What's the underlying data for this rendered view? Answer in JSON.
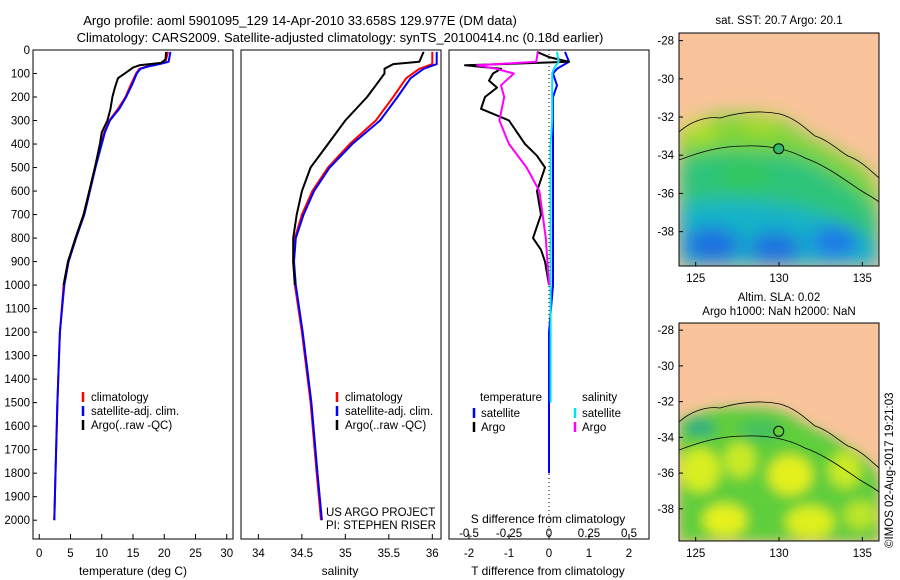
{
  "header": {
    "title_line1": "Argo profile: aoml 5901095_129 14-Apr-2010 33.658S 129.977E (DM data)",
    "title_line2": "Climatology: CARS2009. Satellite-adjusted climatology: synTS_20100414.nc (0.18d earlier)"
  },
  "colors": {
    "climatology": "#ff0000",
    "satellite": "#0000ff",
    "argo": "#000000",
    "salinity_satellite": "#00e5ee",
    "salinity_argo": "#ff00ff",
    "land": "#f9c49b"
  },
  "depth_axis": {
    "ticks": [
      0,
      100,
      200,
      300,
      400,
      500,
      600,
      700,
      800,
      900,
      1000,
      1100,
      1200,
      1300,
      1400,
      1500,
      1600,
      1700,
      1800,
      1900,
      2000
    ],
    "range": [
      0,
      2080
    ]
  },
  "chart_data": [
    {
      "id": "temperature",
      "type": "line",
      "xlabel": "temperature (deg C)",
      "xlim": [
        -1,
        31
      ],
      "xticks": [
        0,
        5,
        10,
        15,
        20,
        25,
        30
      ],
      "ylim": [
        0,
        2080
      ],
      "ylabel": "depth",
      "legend": {
        "placement": "lower-middle",
        "entries": [
          "climatology",
          "satellite-adj. clim.",
          "Argo(..raw -QC)"
        ]
      },
      "series": [
        {
          "name": "climatology",
          "color": "#ff0000",
          "depth": [
            8,
            50,
            60,
            70,
            80,
            100,
            150,
            200,
            250,
            300,
            350,
            400,
            450,
            500,
            600,
            700,
            800,
            900,
            1000,
            1200,
            1500,
            1800,
            2000
          ],
          "values": [
            20.6,
            20.2,
            19.0,
            17.2,
            16.0,
            15.5,
            14.6,
            13.8,
            12.6,
            11.2,
            10.4,
            9.9,
            9.4,
            8.9,
            8.0,
            7.1,
            5.8,
            4.6,
            3.9,
            3.3,
            2.9,
            2.6,
            2.4
          ]
        },
        {
          "name": "satellite-adj. clim.",
          "color": "#0000ff",
          "depth": [
            8,
            50,
            60,
            70,
            80,
            100,
            150,
            200,
            250,
            300,
            350,
            400,
            450,
            500,
            600,
            700,
            800,
            900,
            1000,
            1200,
            1500,
            1800,
            2000
          ],
          "values": [
            21.0,
            20.7,
            19.2,
            17.4,
            16.2,
            15.6,
            14.8,
            13.9,
            12.8,
            11.3,
            10.5,
            10.0,
            9.5,
            9.0,
            8.1,
            7.2,
            5.9,
            4.7,
            4.0,
            3.3,
            2.9,
            2.6,
            2.4
          ]
        },
        {
          "name": "Argo(..raw -QC)",
          "color": "#000000",
          "depth": [
            8,
            40,
            55,
            65,
            75,
            90,
            120,
            160,
            200,
            250,
            300,
            350,
            400,
            450,
            500,
            600,
            700,
            800,
            900,
            1000
          ],
          "values": [
            20.3,
            20.2,
            19.5,
            16.0,
            15.0,
            14.2,
            12.6,
            12.1,
            11.7,
            11.4,
            10.9,
            10.0,
            9.7,
            9.3,
            8.9,
            8.0,
            7.1,
            5.8,
            4.6,
            3.9
          ]
        }
      ],
      "annotations": []
    },
    {
      "id": "salinity",
      "type": "line",
      "xlabel": "salinity",
      "xlim": [
        33.8,
        36.1
      ],
      "xticks": [
        34,
        34.5,
        35,
        35.5,
        36
      ],
      "xtick_labels": [
        "34",
        "34.5",
        "35",
        "35.5",
        "36"
      ],
      "ylim": [
        0,
        2080
      ],
      "legend": {
        "placement": "lower-middle",
        "entries": [
          "climatology",
          "satellite-adj. clim.",
          "Argo(..raw -QC)"
        ]
      },
      "series": [
        {
          "name": "climatology",
          "color": "#ff0000",
          "depth": [
            8,
            60,
            80,
            120,
            200,
            300,
            400,
            500,
            600,
            700,
            800,
            900,
            1000,
            1200,
            1500,
            1800,
            2000
          ],
          "values": [
            36.0,
            36.0,
            35.85,
            35.7,
            35.55,
            35.35,
            35.05,
            34.8,
            34.62,
            34.5,
            34.42,
            34.4,
            34.42,
            34.5,
            34.6,
            34.67,
            34.72
          ]
        },
        {
          "name": "satellite-adj. clim.",
          "color": "#0000ff",
          "depth": [
            8,
            60,
            80,
            120,
            200,
            300,
            400,
            500,
            600,
            700,
            800,
            900,
            1000,
            1200,
            1500,
            1800,
            2000
          ],
          "values": [
            36.05,
            36.05,
            35.9,
            35.75,
            35.6,
            35.4,
            35.08,
            34.82,
            34.64,
            34.52,
            34.43,
            34.41,
            34.43,
            34.51,
            34.61,
            34.68,
            34.73
          ]
        },
        {
          "name": "Argo(..raw -QC)",
          "color": "#000000",
          "depth": [
            8,
            50,
            60,
            80,
            100,
            150,
            200,
            300,
            400,
            500,
            600,
            700,
            800,
            900,
            1000
          ],
          "values": [
            35.9,
            35.85,
            35.55,
            35.45,
            35.45,
            35.35,
            35.25,
            35.0,
            34.8,
            34.6,
            34.5,
            34.44,
            34.4,
            34.4,
            34.42
          ]
        }
      ],
      "annotations": [
        "US ARGO PROJECT",
        "PI: STEPHEN RISER"
      ]
    },
    {
      "id": "difference",
      "type": "line",
      "xlabel": "T difference from climatology",
      "xlabel_top": "S difference from climatology",
      "xlim": [
        -2.5,
        2.5
      ],
      "xticks": [
        -2,
        -1,
        0,
        1,
        2
      ],
      "s_ticks_values": [
        -0.5,
        -0.25,
        0,
        0.25,
        0.5
      ],
      "s_ticks_labels": [
        "-0.5",
        "-0.25",
        "0",
        "0.25",
        "0.5"
      ],
      "s_scale": 0.25,
      "ylim": [
        0,
        2080
      ],
      "legend": {
        "placement": "bottom",
        "left_title": "temperature",
        "right_title": "salinity",
        "entries": [
          "satellite",
          "Argo"
        ]
      },
      "series": [
        {
          "name": "temperature satellite",
          "color": "#0000ff",
          "depth": [
            8,
            50,
            80,
            100,
            150,
            200,
            300,
            400,
            500,
            600,
            700,
            800,
            900,
            1000,
            1200,
            1500,
            1800
          ],
          "values": [
            0.4,
            0.5,
            0.2,
            0.1,
            0.2,
            0.1,
            0.1,
            0.1,
            0.1,
            0.1,
            0.1,
            0.1,
            0.1,
            0.1,
            0.0,
            0.0,
            0.0
          ]
        },
        {
          "name": "temperature Argo",
          "color": "#000000",
          "depth": [
            8,
            30,
            50,
            65,
            80,
            100,
            130,
            160,
            200,
            250,
            300,
            350,
            400,
            450,
            500,
            600,
            700,
            800,
            850,
            900,
            1000
          ],
          "values": [
            -0.3,
            0.0,
            0.5,
            -2.1,
            -1.2,
            -1.4,
            -1.5,
            -1.3,
            -1.6,
            -1.7,
            -1.0,
            -0.8,
            -0.6,
            -0.3,
            -0.1,
            -0.3,
            -0.2,
            -0.4,
            -0.2,
            -0.1,
            0.0
          ]
        },
        {
          "name": "salinity satellite",
          "color": "#00e5ee",
          "depth": [
            8,
            50,
            80,
            100,
            150,
            200,
            300,
            400,
            500,
            600,
            700,
            800,
            900,
            1000,
            1200,
            1500
          ],
          "values": [
            0.05,
            0.06,
            0.03,
            0.02,
            0.02,
            0.02,
            0.02,
            0.01,
            0.01,
            0.01,
            0.01,
            0.01,
            0.01,
            0.01,
            0.01,
            0.01
          ]
        },
        {
          "name": "salinity Argo",
          "color": "#ff00ff",
          "depth": [
            8,
            50,
            65,
            80,
            100,
            150,
            200,
            300,
            400,
            500,
            600,
            700,
            800,
            900,
            1000
          ],
          "values": [
            -0.07,
            -0.08,
            -0.45,
            -0.33,
            -0.22,
            -0.3,
            -0.28,
            -0.31,
            -0.25,
            -0.14,
            -0.06,
            -0.04,
            -0.02,
            -0.01,
            0.0
          ]
        }
      ]
    },
    {
      "id": "sst_map",
      "type": "heatmap",
      "title": "sat. SST: 20.7  Argo: 20.1",
      "xlim": [
        124,
        136
      ],
      "ylim": [
        -39.8,
        -27.6
      ],
      "xticks": [
        125,
        130,
        135
      ],
      "yticks": [
        -28,
        -30,
        -32,
        -34,
        -36,
        -38
      ],
      "float_position": [
        129.98,
        -33.66
      ]
    },
    {
      "id": "sla_map",
      "type": "heatmap",
      "title_line1": "Altim. SLA: 0.02",
      "title_line2": "Argo h1000: NaN h2000: NaN",
      "xlim": [
        124,
        136
      ],
      "ylim": [
        -39.8,
        -27.6
      ],
      "xticks": [
        125,
        130,
        135
      ],
      "yticks": [
        -28,
        -30,
        -32,
        -34,
        -36,
        -38
      ],
      "float_position": [
        129.98,
        -33.66
      ]
    }
  ],
  "credit": "©IMOS 02-Aug-2017 19:21:03"
}
